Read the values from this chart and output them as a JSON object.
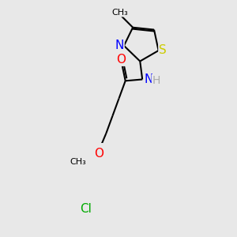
{
  "bg_color": "#e8e8e8",
  "bond_color": "#000000",
  "lw": 1.5,
  "atom_colors": {
    "S": "#cccc00",
    "N": "#0000ff",
    "O": "#ff0000",
    "Cl": "#00aa00",
    "H": "#aaaaaa",
    "C": "#000000"
  },
  "font_size": 10
}
